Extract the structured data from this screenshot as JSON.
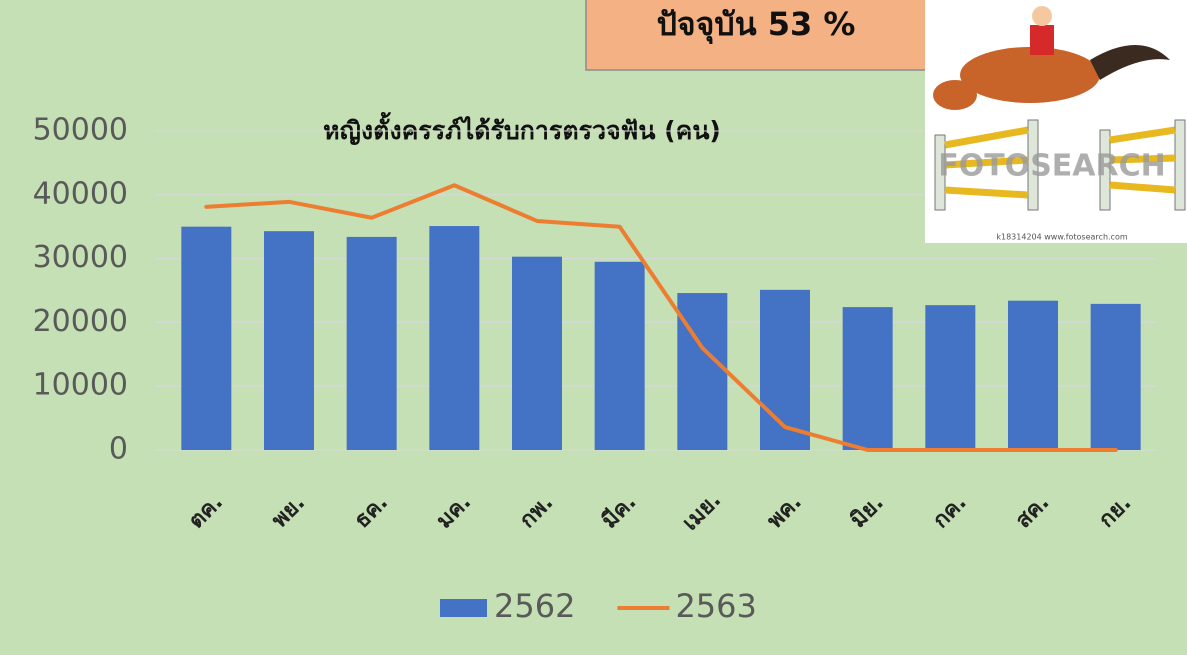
{
  "chart_data": {
    "type": "bar",
    "title": "หญิงตั้งครรภ์ได้รับการตรวจฟัน (คน)",
    "annotation": "ปัจจุบัน 53 %",
    "image_watermark": "FOTOSEARCH",
    "image_caption": "k18314204 www.fotosearch.com",
    "categories": [
      "ตค.",
      "พย.",
      "ธค.",
      "มค.",
      "กพ.",
      "มีค.",
      "เมย.",
      "พค.",
      "มิย.",
      "กค.",
      "สค.",
      "กย."
    ],
    "series": [
      {
        "name": "2562",
        "type": "bar",
        "color": "#4472c4",
        "values": [
          35000,
          34300,
          33400,
          35100,
          30300,
          29500,
          24600,
          25100,
          22400,
          22700,
          23400,
          22900
        ]
      },
      {
        "name": "2563",
        "type": "line",
        "color": "#ed7d31",
        "values": [
          38100,
          38900,
          36400,
          41500,
          35900,
          35000,
          16000,
          3600,
          0,
          0,
          0,
          0
        ]
      }
    ],
    "ylim": [
      0,
      50000
    ],
    "yticks": [
      0,
      10000,
      20000,
      30000,
      40000,
      50000
    ],
    "grid": true,
    "legend": "bottom"
  }
}
